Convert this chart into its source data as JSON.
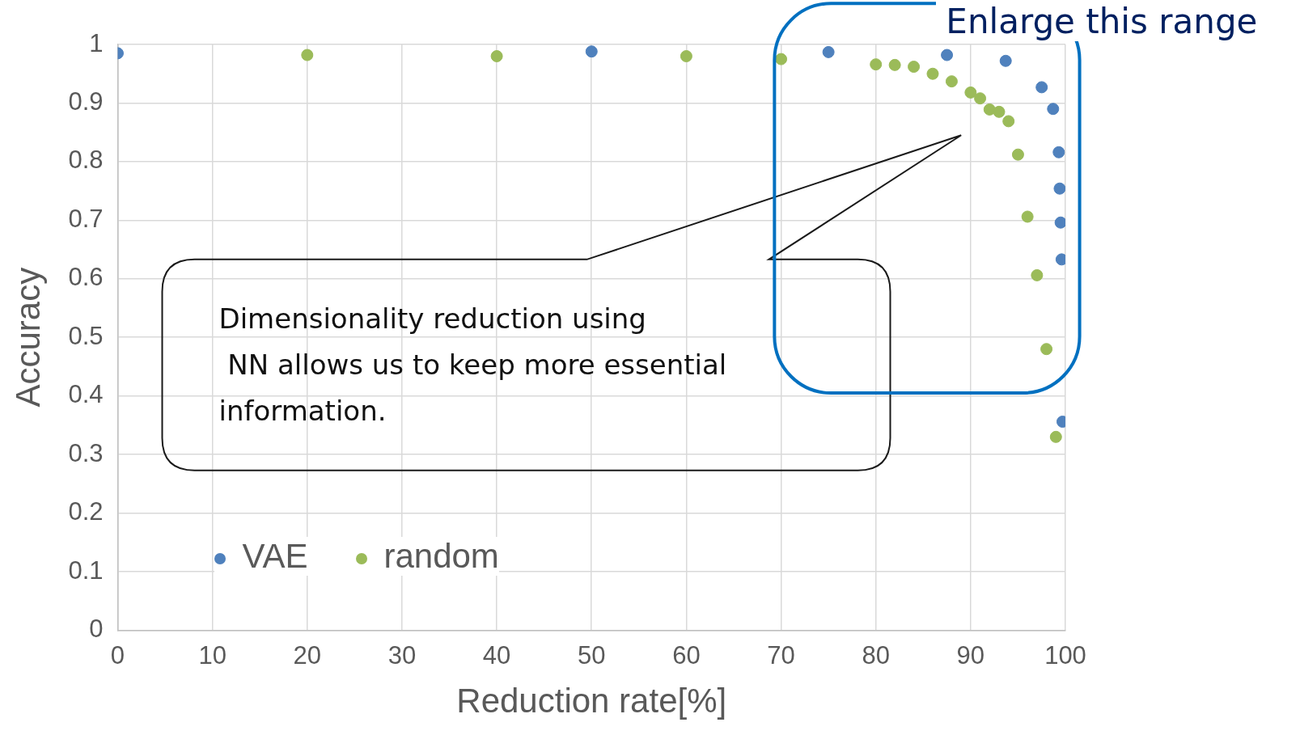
{
  "chart_data": {
    "type": "scatter",
    "xlabel": "Reduction rate[%]",
    "ylabel": "Accuracy",
    "xlim": [
      0,
      100
    ],
    "xticks": [
      0,
      10,
      20,
      30,
      40,
      50,
      60,
      70,
      80,
      90,
      100
    ],
    "ylim": [
      0,
      1
    ],
    "yticks": [
      0,
      0.1,
      0.2,
      0.3,
      0.4,
      0.5,
      0.6,
      0.7,
      0.8,
      0.9,
      1
    ],
    "grid": true,
    "legend": "bottom left",
    "marker": "circle",
    "series": [
      {
        "name": "VAE",
        "color": "#4f81bd",
        "x": [
          0,
          50,
          75,
          87.5,
          93.7,
          97.5,
          98.7,
          99.3,
          99.4,
          99.5,
          99.6,
          99.7
        ],
        "values": [
          0.985,
          0.988,
          0.987,
          0.982,
          0.972,
          0.927,
          0.89,
          0.816,
          0.754,
          0.696,
          0.633,
          0.356
        ]
      },
      {
        "name": "random",
        "color": "#9bbb59",
        "x": [
          20,
          40,
          60,
          70,
          80,
          82,
          84,
          86,
          88,
          90,
          91,
          92,
          93,
          94,
          95,
          96,
          97,
          98,
          99
        ],
        "values": [
          0.982,
          0.98,
          0.98,
          0.975,
          0.966,
          0.965,
          0.962,
          0.95,
          0.937,
          0.918,
          0.908,
          0.889,
          0.885,
          0.869,
          0.812,
          0.706,
          0.606,
          0.48,
          0.33
        ]
      }
    ],
    "annotations": [
      "Dimensionality reduction using\n NN allows us to keep more essential\ninformation.",
      "Enlarge this range"
    ]
  }
}
